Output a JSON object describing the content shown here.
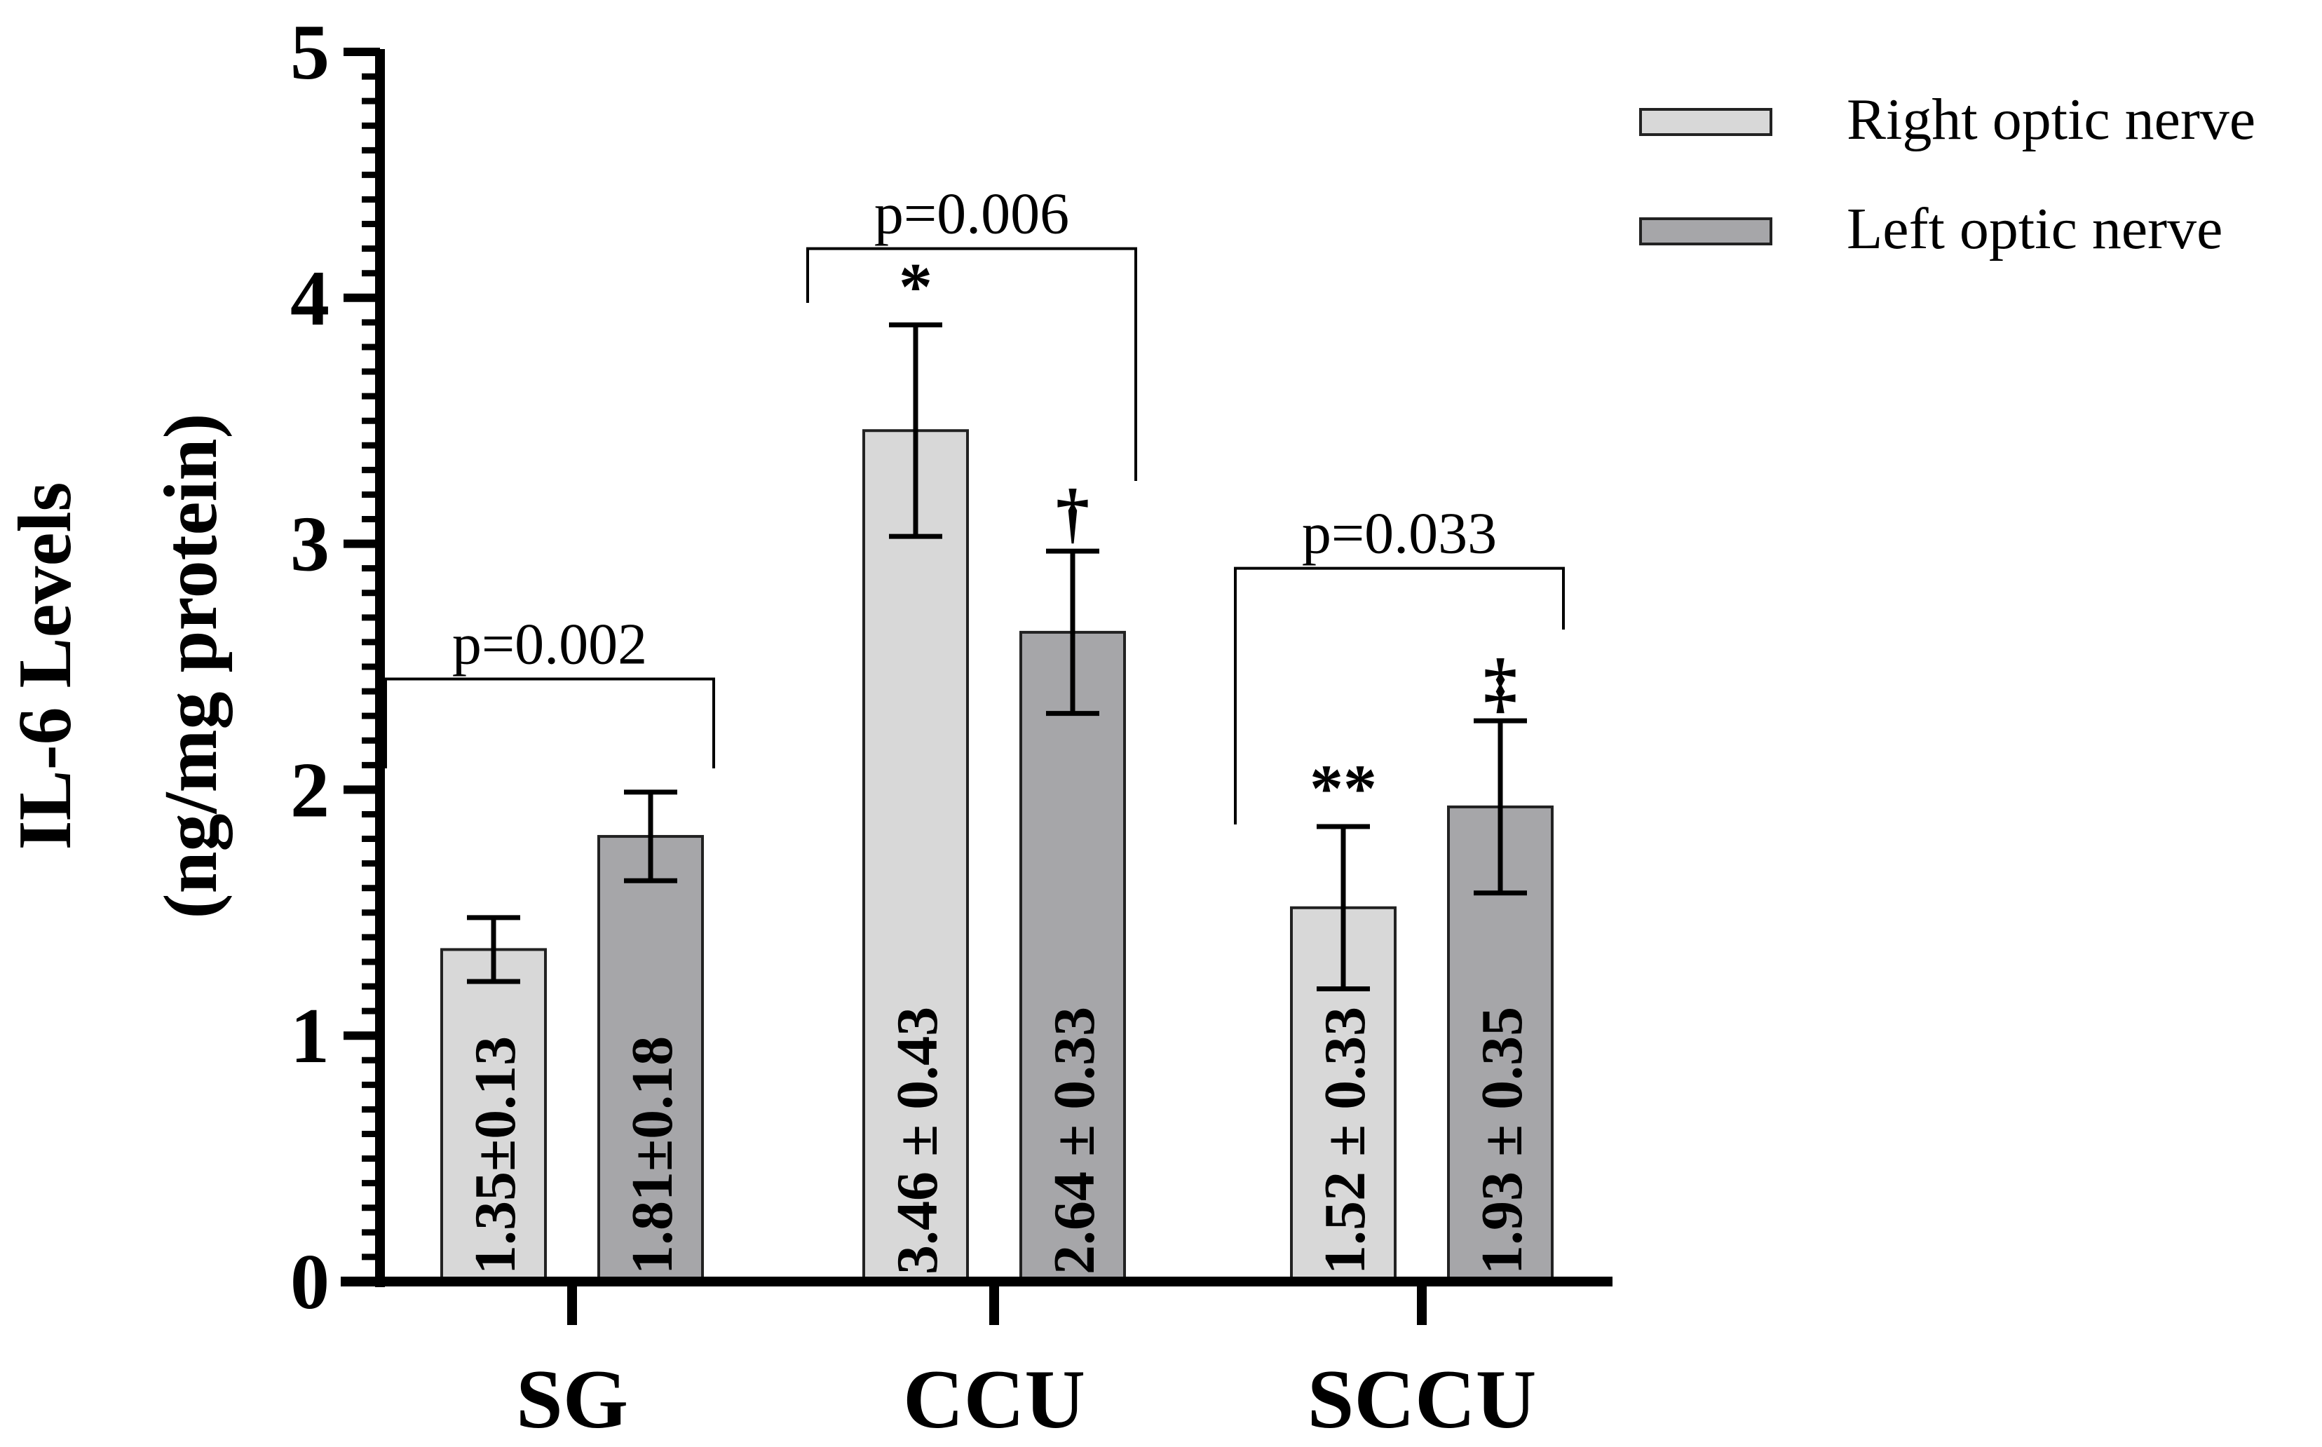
{
  "chart_data": {
    "type": "bar",
    "ylabel_line1": "IL-6 Levels",
    "ylabel_line2": "(ng/mg protein)",
    "ylim": [
      0,
      5
    ],
    "yticks": [
      0,
      1,
      2,
      3,
      4,
      5
    ],
    "categories": [
      "SG",
      "CCU",
      "SCCU"
    ],
    "series": [
      {
        "name": "Right optic nerve",
        "color": "#d8d8d8",
        "values": [
          1.35,
          3.46,
          1.52
        ],
        "errors": [
          0.13,
          0.43,
          0.33
        ],
        "labels": [
          "1.35±0.13",
          "3.46 ± 0.43",
          "1.52 ± 0.33"
        ],
        "markers": [
          "",
          "*",
          "**"
        ]
      },
      {
        "name": "Left optic nerve",
        "color": "#a6a6a9",
        "values": [
          1.81,
          2.64,
          1.93
        ],
        "errors": [
          0.18,
          0.33,
          0.35
        ],
        "labels": [
          "1.81±0.18",
          "2.64 ± 0.33",
          "1.93 ± 0.35"
        ],
        "markers": [
          "",
          "†",
          "‡"
        ]
      }
    ],
    "comparisons": [
      {
        "group": "SG",
        "label": "p=0.002",
        "level": 2.45
      },
      {
        "group": "CCU",
        "label": "p=0.006",
        "level": 4.2
      },
      {
        "group": "SCCU",
        "label": "p=0.033",
        "level": 2.9
      }
    ],
    "legend_position": "top-right"
  }
}
